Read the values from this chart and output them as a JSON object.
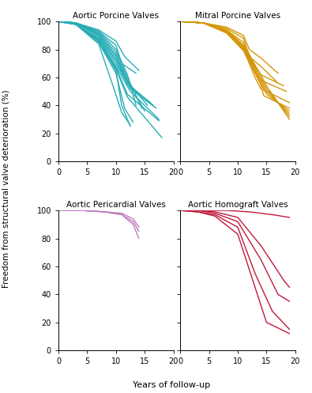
{
  "ylabel": "Freedom from structural valve deterioration (%)",
  "xlabel": "Years of follow-up",
  "panel_titles": [
    "Aortic Porcine Valves",
    "Mitral Porcine Valves",
    "Aortic Pericardial Valves",
    "Aortic Homograft Valves"
  ],
  "colors": [
    "#28adb5",
    "#d4960a",
    "#bf7bbf",
    "#c0193a"
  ],
  "xlim": [
    0,
    20
  ],
  "ylim": [
    0,
    100
  ],
  "xticks": [
    0,
    5,
    10,
    15,
    20
  ],
  "yticks": [
    0,
    20,
    40,
    60,
    80,
    100
  ],
  "curves": {
    "aortic_porcine": [
      {
        "x": [
          0,
          3,
          7,
          10,
          12,
          13.5
        ],
        "y": [
          100,
          99,
          93,
          80,
          62,
          40
        ]
      },
      {
        "x": [
          0,
          3,
          7,
          10,
          12,
          14.5
        ],
        "y": [
          100,
          99,
          92,
          78,
          60,
          38
        ]
      },
      {
        "x": [
          0,
          3,
          7,
          10,
          12,
          15.0
        ],
        "y": [
          100,
          99,
          91,
          76,
          58,
          36
        ]
      },
      {
        "x": [
          0,
          3,
          7,
          10,
          12,
          15.5
        ],
        "y": [
          100,
          99,
          91,
          75,
          57,
          40
        ]
      },
      {
        "x": [
          0,
          3,
          7,
          10,
          12,
          16.0
        ],
        "y": [
          100,
          99,
          90,
          73,
          55,
          42
        ]
      },
      {
        "x": [
          0,
          3,
          7,
          10,
          12.5,
          16.5
        ],
        "y": [
          100,
          99,
          89,
          72,
          54,
          40
        ]
      },
      {
        "x": [
          0,
          3,
          7,
          10,
          12.5,
          17.0
        ],
        "y": [
          100,
          98,
          88,
          70,
          52,
          38
        ]
      },
      {
        "x": [
          0,
          3,
          7,
          10,
          12.5,
          17.5
        ],
        "y": [
          100,
          98,
          87,
          68,
          50,
          30
        ]
      },
      {
        "x": [
          0,
          3,
          7,
          10,
          12,
          17.5
        ],
        "y": [
          100,
          98,
          87,
          67,
          48,
          29
        ]
      },
      {
        "x": [
          0,
          3,
          7,
          10,
          12,
          18.0
        ],
        "y": [
          100,
          98,
          87,
          66,
          46,
          17
        ]
      },
      {
        "x": [
          0,
          3,
          7,
          10,
          11,
          12.5
        ],
        "y": [
          100,
          98,
          86,
          65,
          40,
          25
        ]
      },
      {
        "x": [
          0,
          3,
          7,
          10,
          11.5,
          13.0
        ],
        "y": [
          100,
          98,
          85,
          63,
          38,
          28
        ]
      },
      {
        "x": [
          0,
          3,
          7,
          9,
          11,
          12.5
        ],
        "y": [
          100,
          98,
          84,
          60,
          35,
          26
        ]
      },
      {
        "x": [
          0,
          3,
          7,
          10,
          11,
          13.5
        ],
        "y": [
          100,
          99,
          93,
          83,
          70,
          63
        ]
      },
      {
        "x": [
          0,
          3,
          7,
          10,
          11.5,
          14.0
        ],
        "y": [
          100,
          99,
          94,
          86,
          75,
          65
        ]
      }
    ],
    "mitral_porcine": [
      {
        "x": [
          0,
          4,
          8,
          11,
          14,
          15,
          19
        ],
        "y": [
          100,
          99,
          94,
          83,
          62,
          54,
          30
        ]
      },
      {
        "x": [
          0,
          4,
          8,
          11,
          14,
          15,
          19
        ],
        "y": [
          100,
          99,
          93,
          82,
          60,
          52,
          32
        ]
      },
      {
        "x": [
          0,
          4,
          8,
          11,
          14,
          15,
          19
        ],
        "y": [
          100,
          99,
          93,
          81,
          58,
          50,
          34
        ]
      },
      {
        "x": [
          0,
          4,
          8,
          11,
          14,
          15,
          19
        ],
        "y": [
          100,
          99,
          92,
          80,
          56,
          48,
          36
        ]
      },
      {
        "x": [
          0,
          4,
          8,
          11,
          14,
          14.5,
          19
        ],
        "y": [
          100,
          99,
          92,
          79,
          55,
          47,
          38
        ]
      },
      {
        "x": [
          0,
          4,
          8,
          11,
          13,
          14,
          19
        ],
        "y": [
          100,
          99,
          92,
          80,
          60,
          52,
          42
        ]
      },
      {
        "x": [
          0,
          4,
          8,
          11,
          13,
          14,
          18.5
        ],
        "y": [
          100,
          99,
          93,
          83,
          65,
          58,
          50
        ]
      },
      {
        "x": [
          0,
          4,
          8,
          11,
          13,
          14,
          18
        ],
        "y": [
          100,
          99,
          94,
          85,
          68,
          62,
          54
        ]
      },
      {
        "x": [
          0,
          4,
          8,
          11,
          12,
          14,
          17
        ],
        "y": [
          100,
          99,
          95,
          88,
          75,
          68,
          56
        ]
      },
      {
        "x": [
          0,
          4,
          8,
          11,
          12,
          14,
          17
        ],
        "y": [
          100,
          99,
          96,
          90,
          80,
          74,
          63
        ]
      }
    ],
    "aortic_pericardial": [
      {
        "x": [
          0,
          4,
          8,
          11,
          13,
          14
        ],
        "y": [
          100,
          100,
          99,
          97,
          90,
          80
        ]
      },
      {
        "x": [
          0,
          4,
          8,
          11,
          13,
          14
        ],
        "y": [
          100,
          100,
          99,
          97,
          92,
          85
        ]
      },
      {
        "x": [
          0,
          4,
          8,
          11,
          13,
          14
        ],
        "y": [
          100,
          100,
          99,
          98,
          94,
          88
        ]
      }
    ],
    "aortic_homograft": [
      {
        "x": [
          0,
          4,
          8,
          12,
          16,
          19
        ],
        "y": [
          100,
          100,
          100,
          99,
          97,
          95
        ]
      },
      {
        "x": [
          0,
          3,
          6,
          10,
          14,
          18,
          19
        ],
        "y": [
          100,
          100,
          99,
          95,
          75,
          50,
          45
        ]
      },
      {
        "x": [
          0,
          3,
          6,
          10,
          14,
          17,
          19
        ],
        "y": [
          100,
          100,
          98,
          92,
          65,
          40,
          35
        ]
      },
      {
        "x": [
          0,
          3,
          6,
          10,
          13,
          16,
          19
        ],
        "y": [
          100,
          99,
          97,
          88,
          55,
          28,
          15
        ]
      },
      {
        "x": [
          0,
          3,
          6,
          10,
          13,
          15,
          19
        ],
        "y": [
          100,
          99,
          96,
          83,
          45,
          20,
          12
        ]
      }
    ]
  }
}
